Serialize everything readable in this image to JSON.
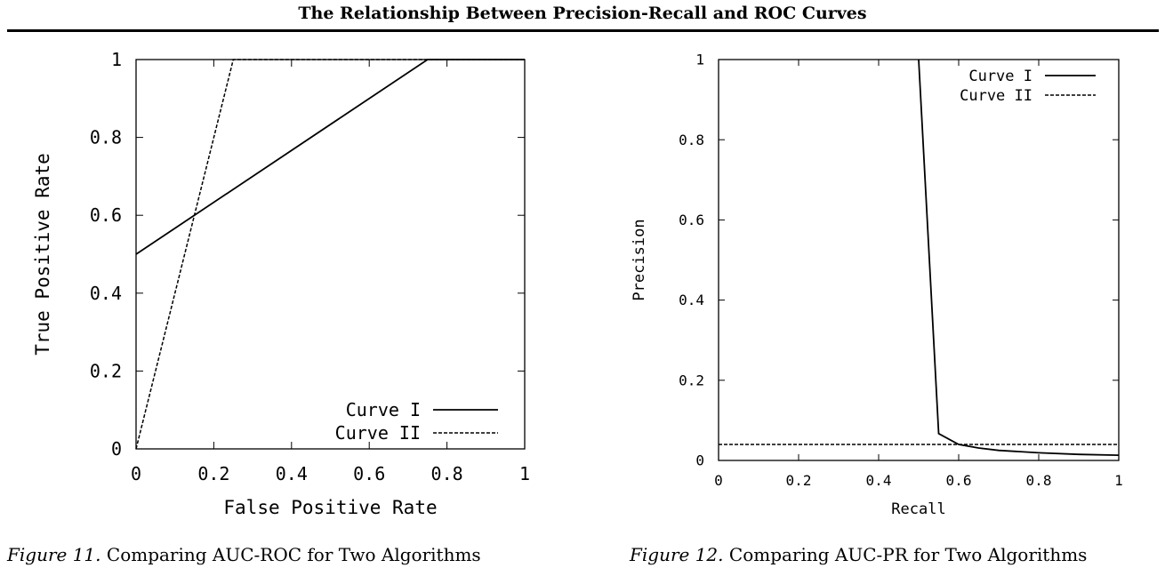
{
  "header": {
    "title": "The Relationship Between Precision-Recall and ROC Curves"
  },
  "captions": [
    {
      "label": "Figure 11.",
      "text": " Comparing AUC-ROC for Two Algorithms"
    },
    {
      "label": "Figure 12.",
      "text": " Comparing AUC-PR for Two Algorithms"
    }
  ],
  "chart_data": [
    {
      "type": "line",
      "title": "",
      "xlabel": "False Positive Rate",
      "ylabel": "True Positive Rate",
      "xlim": [
        0,
        1
      ],
      "ylim": [
        0,
        1
      ],
      "xticks": [
        "0",
        "0.2",
        "0.4",
        "0.6",
        "0.8",
        "1"
      ],
      "yticks": [
        "0",
        "0.2",
        "0.4",
        "0.6",
        "0.8",
        "1"
      ],
      "grid": false,
      "legend_position": "bottom-right",
      "series": [
        {
          "name": "Curve I",
          "style": "solid",
          "x": [
            0,
            0.75,
            1
          ],
          "y": [
            0.5,
            1,
            1
          ]
        },
        {
          "name": "Curve II",
          "style": "dashed",
          "x": [
            0,
            0.25,
            1
          ],
          "y": [
            0,
            1,
            1
          ]
        }
      ]
    },
    {
      "type": "line",
      "title": "",
      "xlabel": "Recall",
      "ylabel": "Precision",
      "xlim": [
        0,
        1
      ],
      "ylim": [
        0,
        1
      ],
      "xticks": [
        "0",
        "0.2",
        "0.4",
        "0.6",
        "0.8",
        "1"
      ],
      "yticks": [
        "0",
        "0.2",
        "0.4",
        "0.6",
        "0.8",
        "1"
      ],
      "grid": false,
      "legend_position": "top-right",
      "series": [
        {
          "name": "Curve I",
          "style": "solid",
          "x": [
            0.5,
            0.55,
            0.6,
            0.65,
            0.7,
            0.8,
            0.9,
            1.0
          ],
          "y": [
            1.0,
            0.067,
            0.04,
            0.031,
            0.025,
            0.019,
            0.015,
            0.013
          ]
        },
        {
          "name": "Curve II",
          "style": "dashed",
          "x": [
            0,
            1
          ],
          "y": [
            0.04,
            0.04
          ]
        }
      ]
    }
  ]
}
